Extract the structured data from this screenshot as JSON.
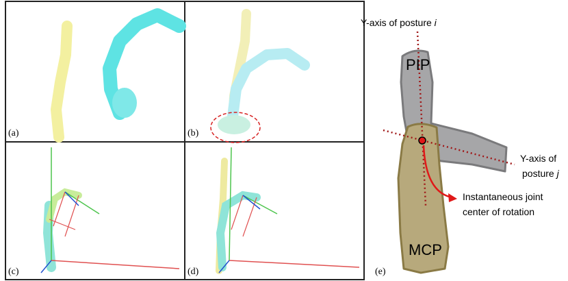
{
  "panels": {
    "a": "(a)",
    "b": "(b)",
    "c": "(c)",
    "d": "(d)",
    "e": "(e)"
  },
  "bones": {
    "pip": "PIP",
    "mcp": "MCP"
  },
  "annotations": {
    "axis_i": {
      "text": "Y-axis of posture ",
      "var": "i"
    },
    "axis_j": {
      "line1": "Y-axis of",
      "line2": "posture ",
      "var": "j"
    },
    "center": {
      "line1": "Instantaneous joint",
      "line2": "center of rotation"
    }
  }
}
